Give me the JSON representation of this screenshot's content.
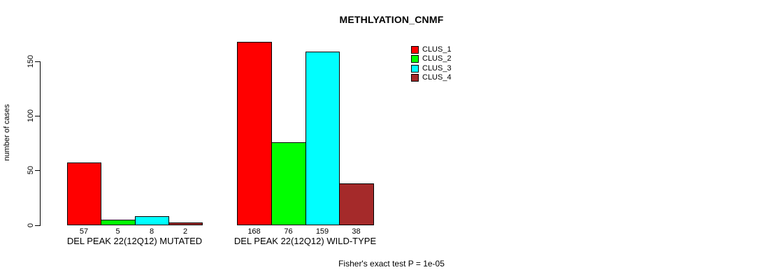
{
  "title": "METHLYATION_CNMF",
  "footer": "Fisher's exact test P = 1e-05",
  "chart_data": {
    "type": "bar",
    "title": "METHLYATION_CNMF",
    "ylabel": "number of cases",
    "xlabel": "",
    "yticks": [
      0,
      50,
      100,
      150
    ],
    "ylim": [
      0,
      168
    ],
    "grid": false,
    "legend_position": "top-right",
    "bar_outline_color": "#000000",
    "categories": [
      "DEL PEAK 22(12Q12) MUTATED",
      "DEL PEAK 22(12Q12) WILD-TYPE"
    ],
    "series": [
      {
        "name": "CLUS_1",
        "color": "#FF0000",
        "values": [
          57,
          168
        ]
      },
      {
        "name": "CLUS_2",
        "color": "#00FF00",
        "values": [
          5,
          76
        ]
      },
      {
        "name": "CLUS_3",
        "color": "#00FFFF",
        "values": [
          8,
          159
        ]
      },
      {
        "name": "CLUS_4",
        "color": "#A52A2A",
        "values": [
          2,
          38
        ]
      }
    ],
    "groups": [
      {
        "label": "DEL PEAK 22(12Q12) MUTATED",
        "values": [
          57,
          5,
          8,
          2
        ]
      },
      {
        "label": "DEL PEAK 22(12Q12) WILD-TYPE",
        "values": [
          168,
          76,
          159,
          38
        ]
      }
    ],
    "annotation": "Fisher's exact test P = 1e-05"
  }
}
